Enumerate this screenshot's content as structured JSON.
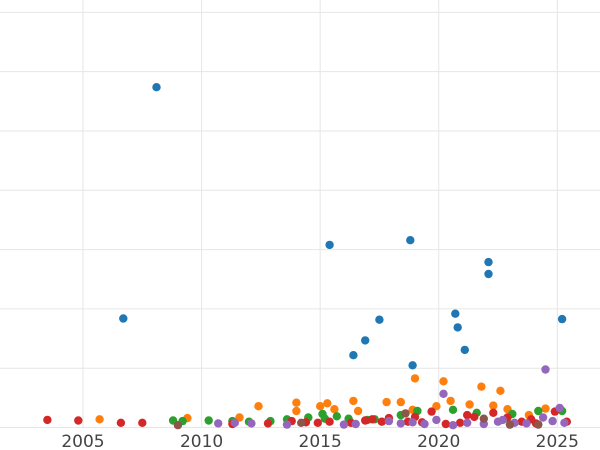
{
  "chart_data": {
    "type": "scatter",
    "title": "",
    "xlabel": "",
    "ylabel": "",
    "xlim": [
      2001.5,
      2026.8
    ],
    "ylim": [
      0,
      7.2
    ],
    "x_ticks": [
      2005,
      2010,
      2015,
      2020,
      2025
    ],
    "x_tick_labels": [
      "2005",
      "2010",
      "2015",
      "2020",
      "2025"
    ],
    "y_gridlines": [
      0,
      1,
      2,
      3,
      4,
      5,
      6,
      7
    ],
    "grid": true,
    "legend": "none",
    "series": [
      {
        "color": "#1f77b4",
        "points": [
          [
            2008.1,
            5.73
          ],
          [
            2006.7,
            1.83
          ],
          [
            2015.4,
            3.07
          ],
          [
            2018.8,
            3.15
          ],
          [
            2022.1,
            2.78
          ],
          [
            2022.1,
            2.58
          ],
          [
            2025.2,
            1.82
          ],
          [
            2017.5,
            1.81
          ],
          [
            2020.7,
            1.91
          ],
          [
            2020.8,
            1.68
          ],
          [
            2016.9,
            1.46
          ],
          [
            2021.1,
            1.3
          ],
          [
            2016.4,
            1.21
          ],
          [
            2018.9,
            1.04
          ]
        ]
      },
      {
        "color": "#ff7f0e",
        "points": [
          [
            2005.7,
            0.13
          ],
          [
            2009.4,
            0.15
          ],
          [
            2011.6,
            0.16
          ],
          [
            2012.4,
            0.35
          ],
          [
            2014.0,
            0.41
          ],
          [
            2014.0,
            0.27
          ],
          [
            2015.0,
            0.35
          ],
          [
            2015.3,
            0.4
          ],
          [
            2016.4,
            0.44
          ],
          [
            2016.6,
            0.27
          ],
          [
            2017.8,
            0.42
          ],
          [
            2018.4,
            0.42
          ],
          [
            2019.0,
            0.82
          ],
          [
            2020.2,
            0.77
          ],
          [
            2020.5,
            0.44
          ],
          [
            2021.3,
            0.38
          ],
          [
            2021.8,
            0.68
          ],
          [
            2022.6,
            0.61
          ],
          [
            2022.9,
            0.3
          ],
          [
            2023.8,
            0.2
          ],
          [
            2024.5,
            0.31
          ],
          [
            2019.9,
            0.35
          ],
          [
            2022.3,
            0.36
          ],
          [
            2018.9,
            0.29
          ],
          [
            2015.6,
            0.3
          ]
        ]
      },
      {
        "color": "#2ca02c",
        "points": [
          [
            2008.8,
            0.11
          ],
          [
            2009.2,
            0.1
          ],
          [
            2010.3,
            0.11
          ],
          [
            2011.3,
            0.1
          ],
          [
            2012.0,
            0.09
          ],
          [
            2012.9,
            0.1
          ],
          [
            2013.6,
            0.13
          ],
          [
            2014.5,
            0.16
          ],
          [
            2015.2,
            0.14
          ],
          [
            2015.7,
            0.18
          ],
          [
            2016.2,
            0.14
          ],
          [
            2017.3,
            0.13
          ],
          [
            2018.4,
            0.2
          ],
          [
            2019.1,
            0.27
          ],
          [
            2020.6,
            0.29
          ],
          [
            2021.6,
            0.24
          ],
          [
            2023.1,
            0.22
          ],
          [
            2024.2,
            0.27
          ],
          [
            2025.2,
            0.27
          ],
          [
            2015.1,
            0.22
          ],
          [
            2017.0,
            0.12
          ]
        ]
      },
      {
        "color": "#d62728",
        "points": [
          [
            2003.5,
            0.12
          ],
          [
            2004.8,
            0.11
          ],
          [
            2006.6,
            0.07
          ],
          [
            2007.5,
            0.07
          ],
          [
            2011.3,
            0.05
          ],
          [
            2012.8,
            0.06
          ],
          [
            2014.4,
            0.08
          ],
          [
            2014.9,
            0.07
          ],
          [
            2015.4,
            0.09
          ],
          [
            2016.3,
            0.07
          ],
          [
            2017.2,
            0.13
          ],
          [
            2017.6,
            0.09
          ],
          [
            2017.9,
            0.15
          ],
          [
            2018.7,
            0.09
          ],
          [
            2019.0,
            0.17
          ],
          [
            2019.7,
            0.26
          ],
          [
            2020.3,
            0.05
          ],
          [
            2021.2,
            0.2
          ],
          [
            2021.5,
            0.17
          ],
          [
            2022.3,
            0.24
          ],
          [
            2022.9,
            0.16
          ],
          [
            2023.5,
            0.09
          ],
          [
            2024.1,
            0.06
          ],
          [
            2024.9,
            0.26
          ],
          [
            2025.4,
            0.09
          ],
          [
            2016.9,
            0.11
          ],
          [
            2019.3,
            0.08
          ],
          [
            2020.9,
            0.07
          ],
          [
            2023.9,
            0.13
          ],
          [
            2013.8,
            0.1
          ]
        ]
      },
      {
        "color": "#9467bd",
        "points": [
          [
            2010.7,
            0.06
          ],
          [
            2011.4,
            0.07
          ],
          [
            2012.1,
            0.06
          ],
          [
            2013.6,
            0.04
          ],
          [
            2016.0,
            0.04
          ],
          [
            2016.5,
            0.05
          ],
          [
            2017.9,
            0.1
          ],
          [
            2018.4,
            0.06
          ],
          [
            2018.9,
            0.08
          ],
          [
            2019.4,
            0.05
          ],
          [
            2020.2,
            0.56
          ],
          [
            2020.6,
            0.03
          ],
          [
            2021.2,
            0.07
          ],
          [
            2021.9,
            0.05
          ],
          [
            2022.5,
            0.09
          ],
          [
            2023.2,
            0.07
          ],
          [
            2023.7,
            0.06
          ],
          [
            2024.4,
            0.16
          ],
          [
            2024.5,
            0.97
          ],
          [
            2024.8,
            0.1
          ],
          [
            2025.1,
            0.32
          ],
          [
            2025.3,
            0.07
          ],
          [
            2019.9,
            0.12
          ],
          [
            2022.7,
            0.12
          ]
        ]
      },
      {
        "color": "#8c564b",
        "points": [
          [
            2009.0,
            0.03
          ],
          [
            2014.2,
            0.07
          ],
          [
            2018.6,
            0.23
          ],
          [
            2021.9,
            0.14
          ],
          [
            2023.0,
            0.04
          ],
          [
            2024.2,
            0.04
          ]
        ]
      }
    ]
  }
}
